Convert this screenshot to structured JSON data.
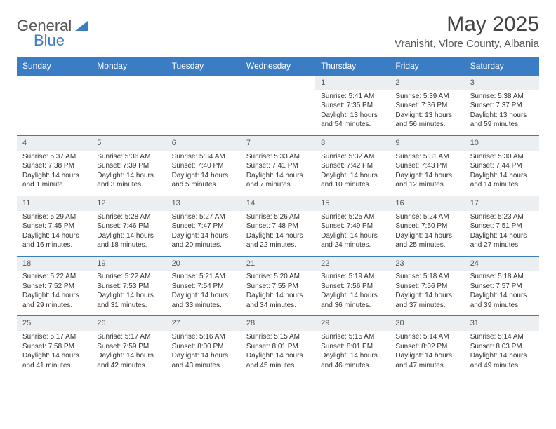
{
  "brand": {
    "part1": "General",
    "part2": "Blue"
  },
  "title": "May 2025",
  "location": "Vranisht, Vlore County, Albania",
  "colors": {
    "header_bg": "#3b7dc4",
    "header_fg": "#ffffff",
    "daynum_bg": "#eceff1",
    "text": "#333333"
  },
  "day_headers": [
    "Sunday",
    "Monday",
    "Tuesday",
    "Wednesday",
    "Thursday",
    "Friday",
    "Saturday"
  ],
  "weeks": [
    [
      {
        "n": "",
        "sunrise": "",
        "sunset": "",
        "daylight": ""
      },
      {
        "n": "",
        "sunrise": "",
        "sunset": "",
        "daylight": ""
      },
      {
        "n": "",
        "sunrise": "",
        "sunset": "",
        "daylight": ""
      },
      {
        "n": "",
        "sunrise": "",
        "sunset": "",
        "daylight": ""
      },
      {
        "n": "1",
        "sunrise": "Sunrise: 5:41 AM",
        "sunset": "Sunset: 7:35 PM",
        "daylight": "Daylight: 13 hours and 54 minutes."
      },
      {
        "n": "2",
        "sunrise": "Sunrise: 5:39 AM",
        "sunset": "Sunset: 7:36 PM",
        "daylight": "Daylight: 13 hours and 56 minutes."
      },
      {
        "n": "3",
        "sunrise": "Sunrise: 5:38 AM",
        "sunset": "Sunset: 7:37 PM",
        "daylight": "Daylight: 13 hours and 59 minutes."
      }
    ],
    [
      {
        "n": "4",
        "sunrise": "Sunrise: 5:37 AM",
        "sunset": "Sunset: 7:38 PM",
        "daylight": "Daylight: 14 hours and 1 minute."
      },
      {
        "n": "5",
        "sunrise": "Sunrise: 5:36 AM",
        "sunset": "Sunset: 7:39 PM",
        "daylight": "Daylight: 14 hours and 3 minutes."
      },
      {
        "n": "6",
        "sunrise": "Sunrise: 5:34 AM",
        "sunset": "Sunset: 7:40 PM",
        "daylight": "Daylight: 14 hours and 5 minutes."
      },
      {
        "n": "7",
        "sunrise": "Sunrise: 5:33 AM",
        "sunset": "Sunset: 7:41 PM",
        "daylight": "Daylight: 14 hours and 7 minutes."
      },
      {
        "n": "8",
        "sunrise": "Sunrise: 5:32 AM",
        "sunset": "Sunset: 7:42 PM",
        "daylight": "Daylight: 14 hours and 10 minutes."
      },
      {
        "n": "9",
        "sunrise": "Sunrise: 5:31 AM",
        "sunset": "Sunset: 7:43 PM",
        "daylight": "Daylight: 14 hours and 12 minutes."
      },
      {
        "n": "10",
        "sunrise": "Sunrise: 5:30 AM",
        "sunset": "Sunset: 7:44 PM",
        "daylight": "Daylight: 14 hours and 14 minutes."
      }
    ],
    [
      {
        "n": "11",
        "sunrise": "Sunrise: 5:29 AM",
        "sunset": "Sunset: 7:45 PM",
        "daylight": "Daylight: 14 hours and 16 minutes."
      },
      {
        "n": "12",
        "sunrise": "Sunrise: 5:28 AM",
        "sunset": "Sunset: 7:46 PM",
        "daylight": "Daylight: 14 hours and 18 minutes."
      },
      {
        "n": "13",
        "sunrise": "Sunrise: 5:27 AM",
        "sunset": "Sunset: 7:47 PM",
        "daylight": "Daylight: 14 hours and 20 minutes."
      },
      {
        "n": "14",
        "sunrise": "Sunrise: 5:26 AM",
        "sunset": "Sunset: 7:48 PM",
        "daylight": "Daylight: 14 hours and 22 minutes."
      },
      {
        "n": "15",
        "sunrise": "Sunrise: 5:25 AM",
        "sunset": "Sunset: 7:49 PM",
        "daylight": "Daylight: 14 hours and 24 minutes."
      },
      {
        "n": "16",
        "sunrise": "Sunrise: 5:24 AM",
        "sunset": "Sunset: 7:50 PM",
        "daylight": "Daylight: 14 hours and 25 minutes."
      },
      {
        "n": "17",
        "sunrise": "Sunrise: 5:23 AM",
        "sunset": "Sunset: 7:51 PM",
        "daylight": "Daylight: 14 hours and 27 minutes."
      }
    ],
    [
      {
        "n": "18",
        "sunrise": "Sunrise: 5:22 AM",
        "sunset": "Sunset: 7:52 PM",
        "daylight": "Daylight: 14 hours and 29 minutes."
      },
      {
        "n": "19",
        "sunrise": "Sunrise: 5:22 AM",
        "sunset": "Sunset: 7:53 PM",
        "daylight": "Daylight: 14 hours and 31 minutes."
      },
      {
        "n": "20",
        "sunrise": "Sunrise: 5:21 AM",
        "sunset": "Sunset: 7:54 PM",
        "daylight": "Daylight: 14 hours and 33 minutes."
      },
      {
        "n": "21",
        "sunrise": "Sunrise: 5:20 AM",
        "sunset": "Sunset: 7:55 PM",
        "daylight": "Daylight: 14 hours and 34 minutes."
      },
      {
        "n": "22",
        "sunrise": "Sunrise: 5:19 AM",
        "sunset": "Sunset: 7:56 PM",
        "daylight": "Daylight: 14 hours and 36 minutes."
      },
      {
        "n": "23",
        "sunrise": "Sunrise: 5:18 AM",
        "sunset": "Sunset: 7:56 PM",
        "daylight": "Daylight: 14 hours and 37 minutes."
      },
      {
        "n": "24",
        "sunrise": "Sunrise: 5:18 AM",
        "sunset": "Sunset: 7:57 PM",
        "daylight": "Daylight: 14 hours and 39 minutes."
      }
    ],
    [
      {
        "n": "25",
        "sunrise": "Sunrise: 5:17 AM",
        "sunset": "Sunset: 7:58 PM",
        "daylight": "Daylight: 14 hours and 41 minutes."
      },
      {
        "n": "26",
        "sunrise": "Sunrise: 5:17 AM",
        "sunset": "Sunset: 7:59 PM",
        "daylight": "Daylight: 14 hours and 42 minutes."
      },
      {
        "n": "27",
        "sunrise": "Sunrise: 5:16 AM",
        "sunset": "Sunset: 8:00 PM",
        "daylight": "Daylight: 14 hours and 43 minutes."
      },
      {
        "n": "28",
        "sunrise": "Sunrise: 5:15 AM",
        "sunset": "Sunset: 8:01 PM",
        "daylight": "Daylight: 14 hours and 45 minutes."
      },
      {
        "n": "29",
        "sunrise": "Sunrise: 5:15 AM",
        "sunset": "Sunset: 8:01 PM",
        "daylight": "Daylight: 14 hours and 46 minutes."
      },
      {
        "n": "30",
        "sunrise": "Sunrise: 5:14 AM",
        "sunset": "Sunset: 8:02 PM",
        "daylight": "Daylight: 14 hours and 47 minutes."
      },
      {
        "n": "31",
        "sunrise": "Sunrise: 5:14 AM",
        "sunset": "Sunset: 8:03 PM",
        "daylight": "Daylight: 14 hours and 49 minutes."
      }
    ]
  ]
}
